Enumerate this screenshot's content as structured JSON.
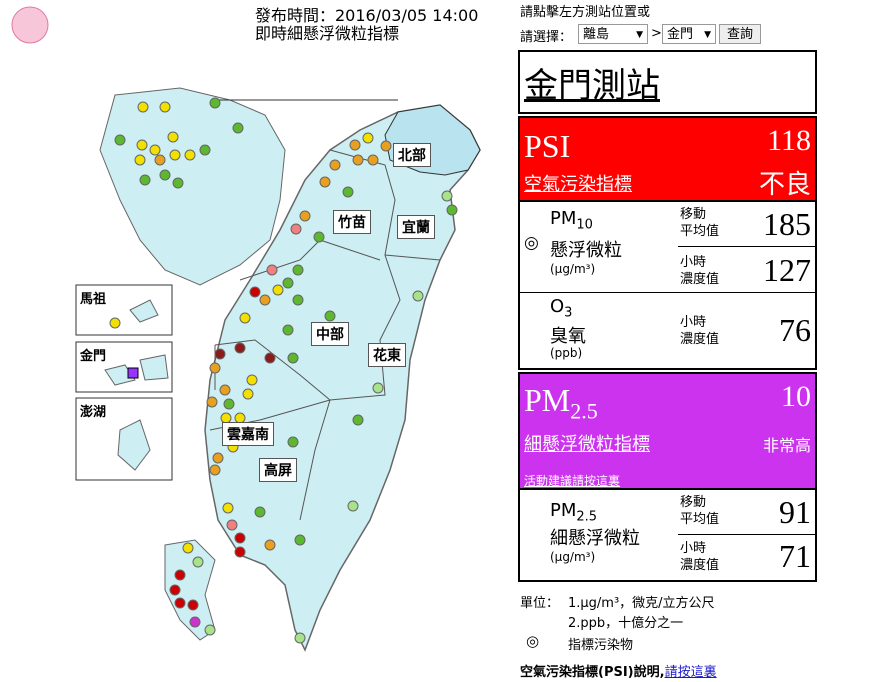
{
  "header": {
    "publish_time": "發布時間：2016/03/05 14:00",
    "title": "即時細懸浮微粒指標"
  },
  "selector": {
    "prompt": "請點擊左方測站位置或",
    "label": "請選擇：",
    "region": "離島",
    "separator": ">",
    "station": "金門",
    "button": "查詢"
  },
  "map": {
    "regions": [
      "北部",
      "竹苗",
      "宜蘭",
      "中部",
      "花東",
      "雲嘉南",
      "高屏"
    ],
    "insets": [
      "馬祖",
      "金門",
      "澎湖"
    ]
  },
  "station": {
    "name": "金門測站",
    "psi": {
      "label": "PSI",
      "value": 118,
      "link": "空氣污染指標",
      "status": "不良"
    },
    "pm10": {
      "name": "PM",
      "sub": "10",
      "label": "懸浮微粒",
      "unit": "(μg/m³)",
      "moving_label": [
        "移動",
        "平均值"
      ],
      "moving": 185,
      "hourly_label": [
        "小時",
        "濃度值"
      ],
      "hourly": 127
    },
    "o3": {
      "name": "O",
      "sub": "3",
      "label": "臭氧",
      "unit": "(ppb)",
      "hourly_label": [
        "小時",
        "濃度值"
      ],
      "hourly": 76
    },
    "pm25_index": {
      "name": "PM",
      "sub": "2.5",
      "value": 10,
      "link": "細懸浮微粒指標",
      "status": "非常高",
      "advice": "活動建議請按這裏"
    },
    "pm25": {
      "name": "PM",
      "sub": "2.5",
      "label": "細懸浮微粒",
      "unit": "(μg/m³)",
      "moving_label": [
        "移動",
        "平均值"
      ],
      "moving": 91,
      "hourly_label": [
        "小時",
        "濃度值"
      ],
      "hourly": 71
    }
  },
  "notes": {
    "unit_label": "單位：",
    "unit1": "1.μg/m³，微克/立方公尺",
    "unit2": "2.ppb，十億分之一",
    "symbol": "◎",
    "symbol_note": "指標污染物",
    "psi_info": "空氣污染指標(PSI)說明,",
    "psi_link": "請按這裏"
  }
}
